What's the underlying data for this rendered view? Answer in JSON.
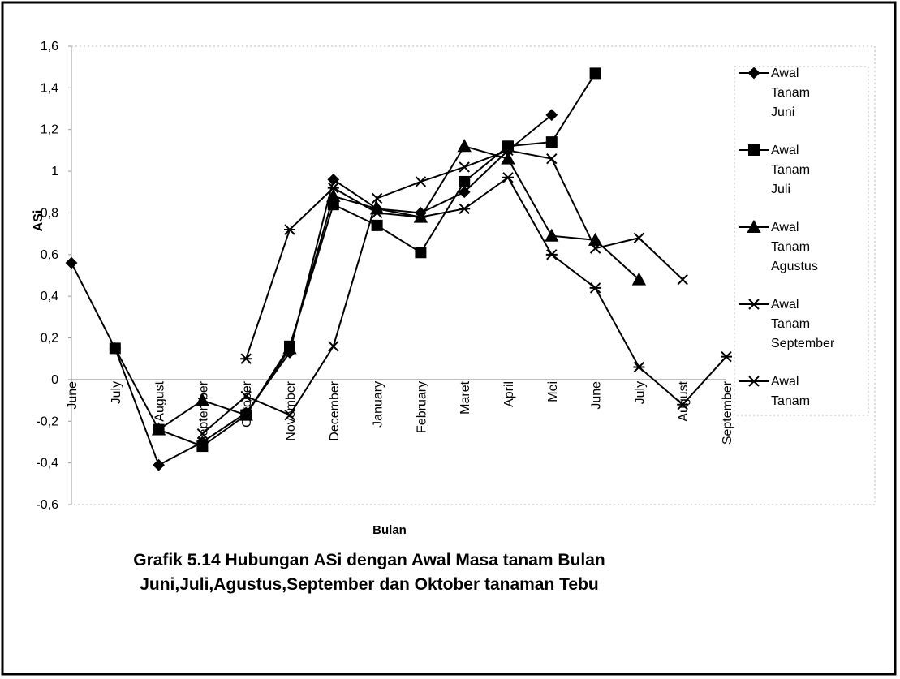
{
  "chart_data": {
    "type": "line",
    "title": "Grafik 5.14 Hubungan ASi dengan Awal Masa tanam Bulan Juni,Juli,Agustus,September dan Oktober tanaman Tebu",
    "xlabel": "Bulan",
    "ylabel": "ASi",
    "categories": [
      "June",
      "July",
      "August",
      "September",
      "October",
      "November",
      "December",
      "January",
      "February",
      "Maret",
      "April",
      "Mei",
      "June",
      "July",
      "August",
      "September"
    ],
    "series": [
      {
        "name": "Awal Tanam Juni",
        "color": "#000000",
        "marker": "diamond",
        "values": [
          0.56,
          0.15,
          -0.41,
          -0.3,
          -0.16,
          0.13,
          0.96,
          0.82,
          0.8,
          0.9,
          1.1,
          1.27,
          null,
          null,
          null,
          null
        ]
      },
      {
        "name": "Awal Tanam Juli",
        "color": "#000000",
        "marker": "square",
        "values": [
          null,
          0.15,
          -0.24,
          -0.32,
          -0.17,
          0.16,
          0.84,
          0.74,
          0.61,
          0.95,
          1.12,
          1.14,
          1.47,
          null,
          null,
          null
        ]
      },
      {
        "name": "Awal Tanam Agustus",
        "color": "#000000",
        "marker": "triangle",
        "values": [
          null,
          null,
          -0.24,
          -0.1,
          -0.17,
          0.15,
          0.88,
          0.82,
          0.78,
          1.12,
          1.06,
          0.69,
          0.67,
          0.48,
          null,
          null
        ]
      },
      {
        "name": "Awal Tanam September",
        "color": "#000000",
        "marker": "x",
        "values": [
          null,
          null,
          null,
          -0.26,
          -0.08,
          -0.17,
          0.16,
          0.87,
          0.95,
          1.02,
          1.1,
          1.06,
          0.63,
          0.68,
          0.48,
          null
        ]
      },
      {
        "name": "Awal Tanam",
        "color": "#000000",
        "marker": "asterisk",
        "values": [
          null,
          null,
          null,
          null,
          0.1,
          0.72,
          0.92,
          0.8,
          0.78,
          0.82,
          0.97,
          0.6,
          0.44,
          0.06,
          -0.12,
          0.11
        ]
      }
    ],
    "ylim": [
      -0.6,
      1.6
    ],
    "yticks": [
      {
        "value": 1.6,
        "label": "1,6"
      },
      {
        "value": 1.4,
        "label": "1,4"
      },
      {
        "value": 1.2,
        "label": "1,2"
      },
      1,
      {
        "value": 0.8,
        "label": "0,8"
      },
      {
        "value": 0.6,
        "label": "0,6"
      },
      {
        "value": 0.4,
        "label": "0,4"
      },
      {
        "value": 0.2,
        "label": "0,2"
      },
      0,
      {
        "value": -0.2,
        "label": "-0,2"
      },
      {
        "value": -0.4,
        "label": "-0,4"
      },
      {
        "value": -0.6,
        "label": "-0,6"
      }
    ],
    "grid": false
  }
}
